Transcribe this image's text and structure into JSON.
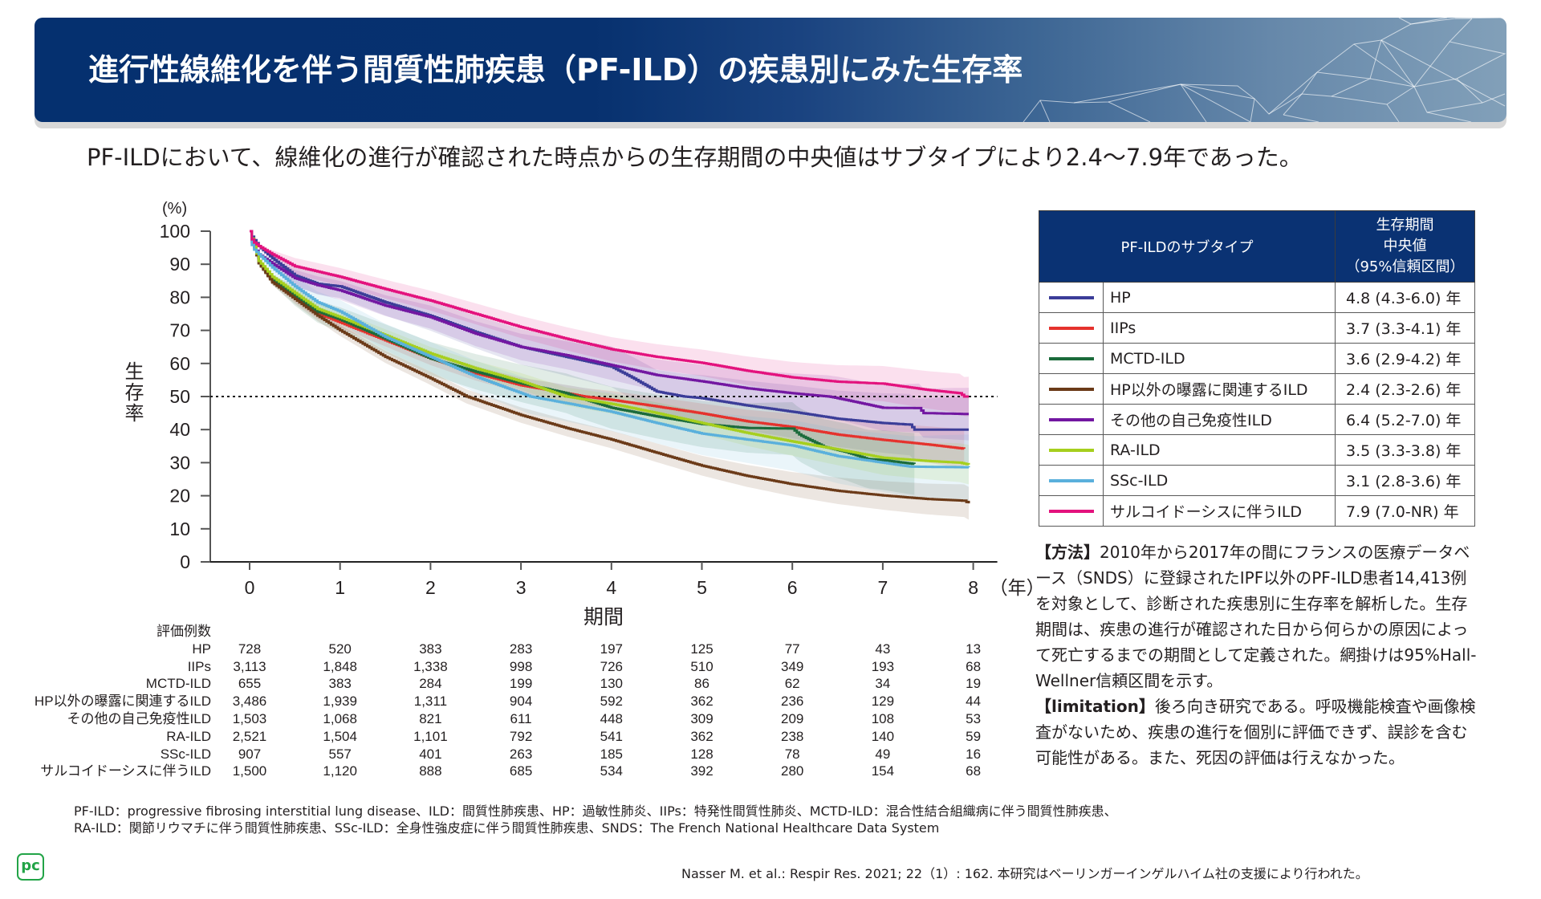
{
  "header": {
    "title": "進行性線維化を伴う間質性肺疾患（PF-ILD）の疾患別にみた生存率"
  },
  "subtitle": "PF-ILDにおいて、線維化の進行が確認された時点からの生存期間の中央値はサブタイプにより2.4～7.9年であった。",
  "chart_data": {
    "type": "line",
    "step": "post",
    "confidence_band": "95% Hall-Wellner",
    "title": "",
    "xlabel": "期間",
    "xunit": "（年）",
    "ylabel": "生存率",
    "yunit": "(%)",
    "xlim": [
      0,
      8
    ],
    "ylim": [
      0,
      100
    ],
    "xticks": [
      0,
      1,
      2,
      3,
      4,
      5,
      6,
      7,
      8
    ],
    "yticks": [
      0,
      10,
      20,
      30,
      40,
      50,
      60,
      70,
      80,
      90,
      100
    ],
    "grid": false,
    "reference_line": {
      "axis": "y",
      "value": 50,
      "style": "dotted"
    },
    "legend": "right (table)",
    "series": [
      {
        "name": "HP",
        "color": "#3b3d98",
        "points": [
          [
            0,
            100
          ],
          [
            0.03,
            98
          ],
          [
            0.1,
            95.5
          ],
          [
            0.25,
            91.8
          ],
          [
            0.5,
            86.6
          ],
          [
            0.75,
            84.1
          ],
          [
            1,
            83.3
          ],
          [
            1.5,
            78.5
          ],
          [
            2,
            74.4
          ],
          [
            2.5,
            69.5
          ],
          [
            3,
            65
          ],
          [
            3.5,
            62
          ],
          [
            4,
            59
          ],
          [
            4.25,
            55.4
          ],
          [
            4.5,
            51.5
          ],
          [
            4.8,
            50
          ],
          [
            5,
            49.5
          ],
          [
            5.5,
            47.3
          ],
          [
            6,
            45.4
          ],
          [
            6.5,
            43.3
          ],
          [
            7,
            42
          ],
          [
            7.3,
            41.5
          ],
          [
            7.35,
            40
          ],
          [
            7.95,
            40
          ]
        ],
        "ci_band_halfwidth": [
          [
            0,
            0
          ],
          [
            0.5,
            3
          ],
          [
            2,
            4.5
          ],
          [
            5,
            7
          ],
          [
            8,
            10
          ]
        ]
      },
      {
        "name": "IIPs",
        "color": "#e5322d",
        "points": [
          [
            0,
            100
          ],
          [
            0.1,
            90.6
          ],
          [
            0.25,
            85
          ],
          [
            0.5,
            80.1
          ],
          [
            0.75,
            75.2
          ],
          [
            1,
            72.4
          ],
          [
            1.5,
            67
          ],
          [
            2,
            61.5
          ],
          [
            2.5,
            57
          ],
          [
            3,
            53.4
          ],
          [
            3.5,
            51
          ],
          [
            3.7,
            50
          ],
          [
            4,
            49
          ],
          [
            4.5,
            47
          ],
          [
            5,
            44.9
          ],
          [
            5.5,
            42.5
          ],
          [
            6,
            40.8
          ],
          [
            6.5,
            38.5
          ],
          [
            7,
            36.9
          ],
          [
            7.5,
            35.5
          ],
          [
            7.9,
            34.2
          ]
        ],
        "ci_band_halfwidth": [
          [
            0,
            0
          ],
          [
            0.5,
            1.5
          ],
          [
            2,
            2
          ],
          [
            5,
            3
          ],
          [
            8,
            6
          ]
        ]
      },
      {
        "name": "MCTD-ILD",
        "color": "#1b6b3b",
        "points": [
          [
            0,
            100
          ],
          [
            0.1,
            90.3
          ],
          [
            0.25,
            85.4
          ],
          [
            0.5,
            80.5
          ],
          [
            0.75,
            75.7
          ],
          [
            1,
            73.3
          ],
          [
            1.5,
            67.5
          ],
          [
            2,
            61.5
          ],
          [
            2.5,
            57.5
          ],
          [
            3,
            54
          ],
          [
            3.5,
            51
          ],
          [
            3.6,
            50
          ],
          [
            4,
            46.6
          ],
          [
            4.5,
            44
          ],
          [
            5,
            41.7
          ],
          [
            5.5,
            40.5
          ],
          [
            6,
            40.3
          ],
          [
            6.08,
            38.4
          ],
          [
            6.35,
            34.8
          ],
          [
            6.6,
            33.2
          ],
          [
            6.83,
            31.1
          ],
          [
            7,
            30.8
          ],
          [
            7.25,
            29.9
          ],
          [
            7.35,
            29.6
          ]
        ],
        "ci_band_halfwidth": [
          [
            0,
            0
          ],
          [
            0.5,
            3
          ],
          [
            2,
            5
          ],
          [
            5,
            7
          ],
          [
            8,
            10
          ]
        ]
      },
      {
        "name": "HP以外の曝露に関連するILD",
        "color": "#6b3a18",
        "points": [
          [
            0,
            100
          ],
          [
            0.1,
            90.3
          ],
          [
            0.25,
            84.5
          ],
          [
            0.5,
            79.5
          ],
          [
            0.75,
            74.5
          ],
          [
            1,
            70
          ],
          [
            1.5,
            62
          ],
          [
            2,
            55.5
          ],
          [
            2.4,
            50
          ],
          [
            3,
            44.4
          ],
          [
            3.5,
            40.5
          ],
          [
            4,
            37
          ],
          [
            4.5,
            33
          ],
          [
            5,
            29.1
          ],
          [
            5.5,
            26
          ],
          [
            6,
            23.5
          ],
          [
            6.5,
            21.5
          ],
          [
            7,
            20.1
          ],
          [
            7.5,
            19
          ],
          [
            7.9,
            18.5
          ],
          [
            7.95,
            17.7
          ]
        ],
        "ci_band_halfwidth": [
          [
            0,
            0
          ],
          [
            0.5,
            1.5
          ],
          [
            2,
            2
          ],
          [
            5,
            3
          ],
          [
            8,
            5
          ]
        ]
      },
      {
        "name": "その他の自己免疫性ILD",
        "color": "#7217a1",
        "points": [
          [
            0,
            100
          ],
          [
            0.03,
            96
          ],
          [
            0.1,
            93
          ],
          [
            0.25,
            90.2
          ],
          [
            0.5,
            85.8
          ],
          [
            0.75,
            83.7
          ],
          [
            1,
            82.1
          ],
          [
            1.5,
            77.5
          ],
          [
            2,
            74
          ],
          [
            2.5,
            69
          ],
          [
            3,
            65
          ],
          [
            3.5,
            62.5
          ],
          [
            4,
            59.5
          ],
          [
            4.5,
            56.5
          ],
          [
            5,
            54.6
          ],
          [
            5.5,
            52.5
          ],
          [
            6,
            51
          ],
          [
            6.4,
            50
          ],
          [
            6.5,
            49.5
          ],
          [
            7,
            46.6
          ],
          [
            7.4,
            46.5
          ],
          [
            7.45,
            45
          ],
          [
            7.95,
            44.7
          ]
        ],
        "ci_band_halfwidth": [
          [
            0,
            0
          ],
          [
            0.5,
            2.5
          ],
          [
            2,
            3.5
          ],
          [
            5,
            5
          ],
          [
            8,
            8
          ]
        ]
      },
      {
        "name": "RA-ILD",
        "color": "#a6cf1e",
        "points": [
          [
            0,
            100
          ],
          [
            0.1,
            91
          ],
          [
            0.25,
            86.2
          ],
          [
            0.5,
            81.3
          ],
          [
            0.75,
            76.5
          ],
          [
            1,
            74
          ],
          [
            1.5,
            68.5
          ],
          [
            2,
            63
          ],
          [
            2.5,
            58.5
          ],
          [
            3,
            54.6
          ],
          [
            3.5,
            50
          ],
          [
            4,
            47.8
          ],
          [
            4.5,
            45
          ],
          [
            5,
            42
          ],
          [
            5.5,
            39
          ],
          [
            6,
            36.4
          ],
          [
            6.5,
            34
          ],
          [
            7,
            31.5
          ],
          [
            7.5,
            30.5
          ],
          [
            7.85,
            30
          ],
          [
            7.95,
            29.4
          ]
        ],
        "ci_band_halfwidth": [
          [
            0,
            0
          ],
          [
            0.5,
            1.5
          ],
          [
            2,
            2
          ],
          [
            5,
            3.5
          ],
          [
            8,
            6
          ]
        ]
      },
      {
        "name": "SSc-ILD",
        "color": "#5ab0dc",
        "points": [
          [
            0,
            100
          ],
          [
            0.03,
            95
          ],
          [
            0.1,
            93
          ],
          [
            0.25,
            89
          ],
          [
            0.5,
            83.3
          ],
          [
            0.75,
            78.5
          ],
          [
            1,
            75.7
          ],
          [
            1.5,
            68
          ],
          [
            2,
            62
          ],
          [
            2.5,
            56
          ],
          [
            3,
            51
          ],
          [
            3.1,
            50
          ],
          [
            3.5,
            48
          ],
          [
            4,
            45.4
          ],
          [
            4.5,
            42
          ],
          [
            5,
            38.8
          ],
          [
            5.5,
            37
          ],
          [
            6,
            35.2
          ],
          [
            6.5,
            32
          ],
          [
            7,
            30
          ],
          [
            7.3,
            28.8
          ],
          [
            7.95,
            28.6
          ]
        ],
        "ci_band_halfwidth": [
          [
            0,
            0
          ],
          [
            0.5,
            3
          ],
          [
            2,
            4.5
          ],
          [
            5,
            6.5
          ],
          [
            8,
            10
          ]
        ]
      },
      {
        "name": "サルコイドーシスに伴うILD",
        "color": "#e3127d",
        "points": [
          [
            0,
            100
          ],
          [
            0.03,
            97
          ],
          [
            0.1,
            95.5
          ],
          [
            0.25,
            93
          ],
          [
            0.5,
            89.4
          ],
          [
            0.75,
            87.8
          ],
          [
            1,
            86.2
          ],
          [
            1.5,
            82.5
          ],
          [
            2,
            79
          ],
          [
            2.5,
            75
          ],
          [
            3,
            71
          ],
          [
            3.5,
            67.5
          ],
          [
            4,
            64.3
          ],
          [
            4.5,
            62
          ],
          [
            5,
            60.2
          ],
          [
            5.5,
            57.8
          ],
          [
            6,
            55.8
          ],
          [
            6.5,
            54.5
          ],
          [
            7,
            53.9
          ],
          [
            7.5,
            52
          ],
          [
            7.85,
            51
          ],
          [
            7.9,
            50
          ],
          [
            7.95,
            50
          ]
        ],
        "ci_band_halfwidth": [
          [
            0,
            0
          ],
          [
            0.5,
            2.5
          ],
          [
            2,
            3
          ],
          [
            5,
            4
          ],
          [
            8,
            6
          ]
        ]
      }
    ]
  },
  "at_risk": {
    "title": "評価例数",
    "rows": [
      {
        "label": "HP",
        "values": [
          "728",
          "520",
          "383",
          "283",
          "197",
          "125",
          "77",
          "43",
          "13"
        ]
      },
      {
        "label": "IIPs",
        "values": [
          "3,113",
          "1,848",
          "1,338",
          "998",
          "726",
          "510",
          "349",
          "193",
          "68"
        ]
      },
      {
        "label": "MCTD-ILD",
        "values": [
          "655",
          "383",
          "284",
          "199",
          "130",
          "86",
          "62",
          "34",
          "19"
        ]
      },
      {
        "label": "HP以外の曝露に関連するILD",
        "values": [
          "3,486",
          "1,939",
          "1,311",
          "904",
          "592",
          "362",
          "236",
          "129",
          "44"
        ]
      },
      {
        "label": "その他の自己免疫性ILD",
        "values": [
          "1,503",
          "1,068",
          "821",
          "611",
          "448",
          "309",
          "209",
          "108",
          "53"
        ]
      },
      {
        "label": "RA-ILD",
        "values": [
          "2,521",
          "1,504",
          "1,101",
          "792",
          "541",
          "362",
          "238",
          "140",
          "59"
        ]
      },
      {
        "label": "SSc-ILD",
        "values": [
          "907",
          "557",
          "401",
          "263",
          "185",
          "128",
          "78",
          "49",
          "16"
        ]
      },
      {
        "label": "サルコイドーシスに伴うILD",
        "values": [
          "1,500",
          "1,120",
          "888",
          "685",
          "534",
          "392",
          "280",
          "154",
          "68"
        ]
      }
    ]
  },
  "legend_table": {
    "header_subtype": "PF-ILDのサブタイプ",
    "header_median_lines": [
      "生存期間",
      "中央値",
      "（95%信頼区間）"
    ],
    "rows": [
      {
        "label": "HP",
        "median": "4.8 (4.3-6.0) 年"
      },
      {
        "label": "IIPs",
        "median": "3.7 (3.3-4.1) 年"
      },
      {
        "label": "MCTD-ILD",
        "median": "3.6 (2.9-4.2) 年"
      },
      {
        "label": "HP以外の曝露に関連するILD",
        "median": "2.4 (2.3-2.6) 年"
      },
      {
        "label": "その他の自己免疫性ILD",
        "median": "6.4 (5.2-7.0) 年"
      },
      {
        "label": "RA-ILD",
        "median": "3.5 (3.3-3.8) 年"
      },
      {
        "label": "SSc-ILD",
        "median": "3.1 (2.8-3.6) 年"
      },
      {
        "label": "サルコイドーシスに伴うILD",
        "median": "7.9 (7.0-NR) 年"
      }
    ]
  },
  "notes": {
    "method_label": "【方法】",
    "method_text": "2010年から2017年の間にフランスの医療データベース（SNDS）に登録されたIPF以外のPF-ILD患者14,413例を対象として、診断された疾患別に生存率を解析した。生存期間は、疾患の進行が確認された日から何らかの原因によって死亡するまでの期間として定義された。網掛けは95%Hall-Wellner信頼区間を示す。",
    "limitation_label": "【limitation】",
    "limitation_text": "後ろ向き研究である。呼吸機能検査や画像検査がないため、疾患の進行を個別に評価できず、誤診を含む可能性がある。また、死因の評価は行えなかった。"
  },
  "footnotes": [
    "PF-ILD：progressive fibrosing interstitial lung disease、ILD：間質性肺疾患、HP：過敏性肺炎、IIPs：特発性間質性肺炎、MCTD-ILD：混合性結合組織病に伴う間質性肺疾患、",
    "RA-ILD：関節リウマチに伴う間質性肺疾患、SSc-ILD：全身性強皮症に伴う間質性肺疾患、SNDS：The French National Healthcare Data System"
  ],
  "citation": "Nasser M. et al.: Respir Res. 2021; 22（1）: 162. 本研究はベーリンガーインゲルハイム社の支援により行われた。",
  "logo": {
    "text": "pc",
    "color": "#22a447"
  }
}
